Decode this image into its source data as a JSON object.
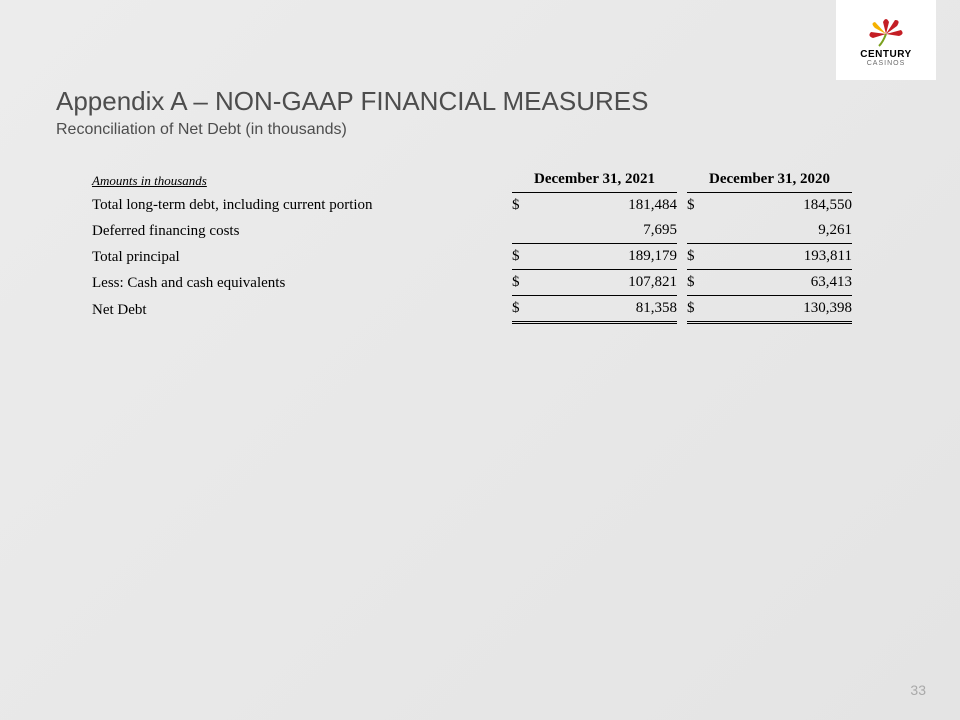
{
  "logo": {
    "brand": "CENTURY",
    "sub": "CASINOS",
    "petal_colors": [
      "#f5b100",
      "#c41e25",
      "#c41e25",
      "#c41e25",
      "#c41e25"
    ],
    "stem_color": "#7aa01e"
  },
  "title": "Appendix A – NON-GAAP FINANCIAL MEASURES",
  "subtitle": "Reconciliation of Net Debt (in thousands)",
  "table": {
    "header_label": "Amounts in thousands",
    "col1_header": "December 31, 2021",
    "col2_header": "December 31, 2020",
    "rows": [
      {
        "label": "Total long-term debt, including current portion",
        "sym1": "$",
        "val1": "181,484",
        "sym2": "$",
        "val2": "184,550",
        "style": "plain"
      },
      {
        "label": "Deferred financing costs",
        "sym1": "",
        "val1": "7,695",
        "sym2": "",
        "val2": "9,261",
        "style": "single"
      },
      {
        "label": "Total principal",
        "indent": true,
        "sym1": "$",
        "val1": "189,179",
        "sym2": "$",
        "val2": "193,811",
        "style": "single"
      },
      {
        "label": "Less: Cash and cash equivalents",
        "sym1": "$",
        "val1": "107,821",
        "sym2": "$",
        "val2": "63,413",
        "style": "single"
      },
      {
        "label": "Net Debt",
        "sym1": "$",
        "val1": "81,358",
        "sym2": "$",
        "val2": "130,398",
        "style": "double"
      }
    ]
  },
  "page_number": "33",
  "colors": {
    "bg_from": "#ececec",
    "bg_to": "#e4e4e4",
    "text_heading": "#4d4d4d",
    "text_body": "#000000",
    "page_num": "#a9a9a9",
    "logo_bg": "#ffffff"
  },
  "typography": {
    "title_fontsize": 26,
    "subtitle_fontsize": 16,
    "table_fontsize": 15,
    "header_label_fontsize": 13,
    "page_num_fontsize": 14
  }
}
